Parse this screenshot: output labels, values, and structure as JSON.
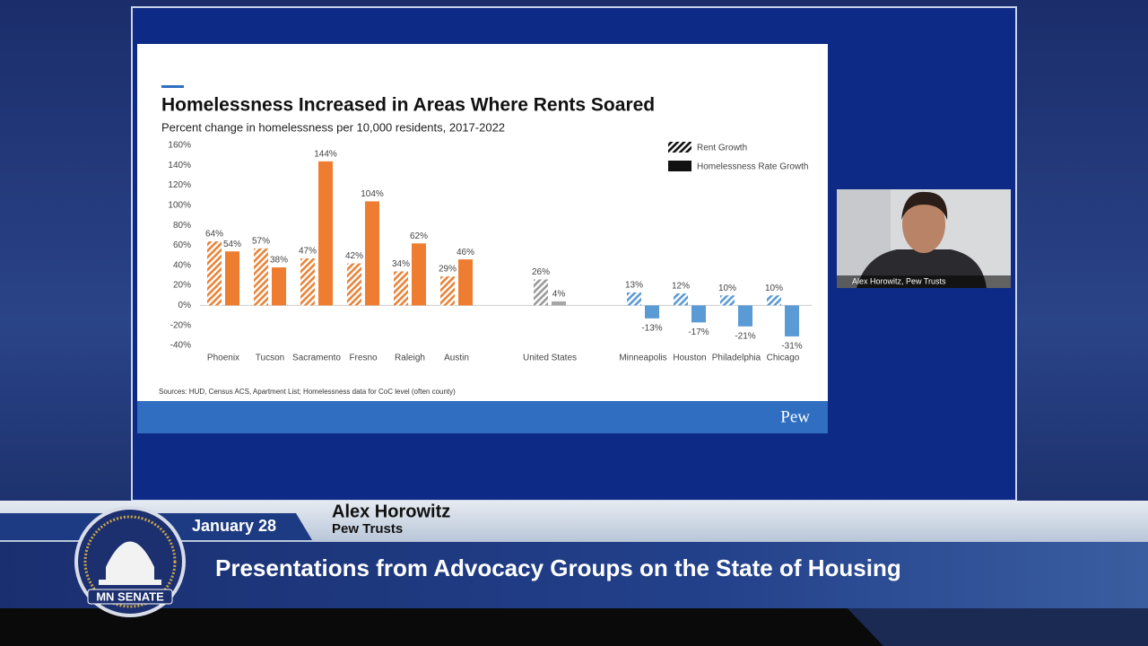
{
  "chart_data": {
    "type": "bar",
    "title": "Homelessness Increased in Areas Where Rents Soared",
    "subtitle": "Percent change in homelessness per 10,000 residents, 2017-2022",
    "categories": [
      "Phoenix",
      "Tucson",
      "Sacramento",
      "Fresno",
      "Raleigh",
      "Austin",
      null,
      "United States",
      null,
      "Minneapolis",
      "Houston",
      "Philadelphia",
      "Chicago"
    ],
    "series": [
      {
        "name": "Rent Growth",
        "style": "hatched",
        "color": "#111111",
        "colors": [
          "#e8843a",
          "#e8843a",
          "#e8843a",
          "#e8843a",
          "#e8843a",
          "#e8843a",
          null,
          "#9a9a9a",
          null,
          "#5b9bd5",
          "#5b9bd5",
          "#5b9bd5",
          "#5b9bd5"
        ],
        "values": [
          64,
          57,
          47,
          42,
          34,
          29,
          null,
          26,
          null,
          13,
          12,
          10,
          10
        ],
        "value_labels": [
          "64%",
          "57%",
          "47%",
          "42%",
          "34%",
          "29%",
          null,
          "26%",
          null,
          "13%",
          "12%",
          "10%",
          "10%"
        ]
      },
      {
        "name": "Homelessness Rate Growth",
        "style": "solid",
        "color": "#111111",
        "colors": [
          "#ee7d31",
          "#ee7d31",
          "#ee7d31",
          "#ee7d31",
          "#ee7d31",
          "#ee7d31",
          null,
          "#a6a6a6",
          null,
          "#5b9bd5",
          "#5b9bd5",
          "#5b9bd5",
          "#5b9bd5"
        ],
        "values": [
          54,
          38,
          144,
          104,
          62,
          46,
          null,
          4,
          null,
          -13,
          -17,
          -21,
          -31
        ],
        "value_labels": [
          "54%",
          "38%",
          "144%",
          "104%",
          "62%",
          "46%",
          null,
          "4%",
          null,
          "-13%",
          "-17%",
          "-21%",
          "-31%"
        ]
      }
    ],
    "ylim": [
      -40,
      160
    ],
    "yticks": [
      {
        "value": 160,
        "label": "160%"
      },
      {
        "value": 140,
        "label": "140%"
      },
      {
        "value": 120,
        "label": "120%"
      },
      {
        "value": 100,
        "label": "100%"
      },
      {
        "value": 80,
        "label": "80%"
      },
      {
        "value": 60,
        "label": "60%"
      },
      {
        "value": 40,
        "label": "40%"
      },
      {
        "value": 20,
        "label": "20%"
      },
      {
        "value": 0,
        "label": "0%"
      },
      {
        "value": -20,
        "label": "-20%"
      },
      {
        "value": -40,
        "label": "-40%"
      }
    ],
    "grid": false,
    "legend": "top-right",
    "sources": "Sources: HUD, Census ACS, Apartment List; Homelessness data for CoC level (often county)",
    "brand": "Pew"
  },
  "video": {
    "participant": "Alex Horowitz, Pew Trusts"
  },
  "lower_third": {
    "date": "January 28",
    "speaker": "Alex Horowitz",
    "organization": "Pew Trusts",
    "headline": "Presentations from Advocacy Groups on the State of Housing",
    "logo": "MN SENATE"
  }
}
